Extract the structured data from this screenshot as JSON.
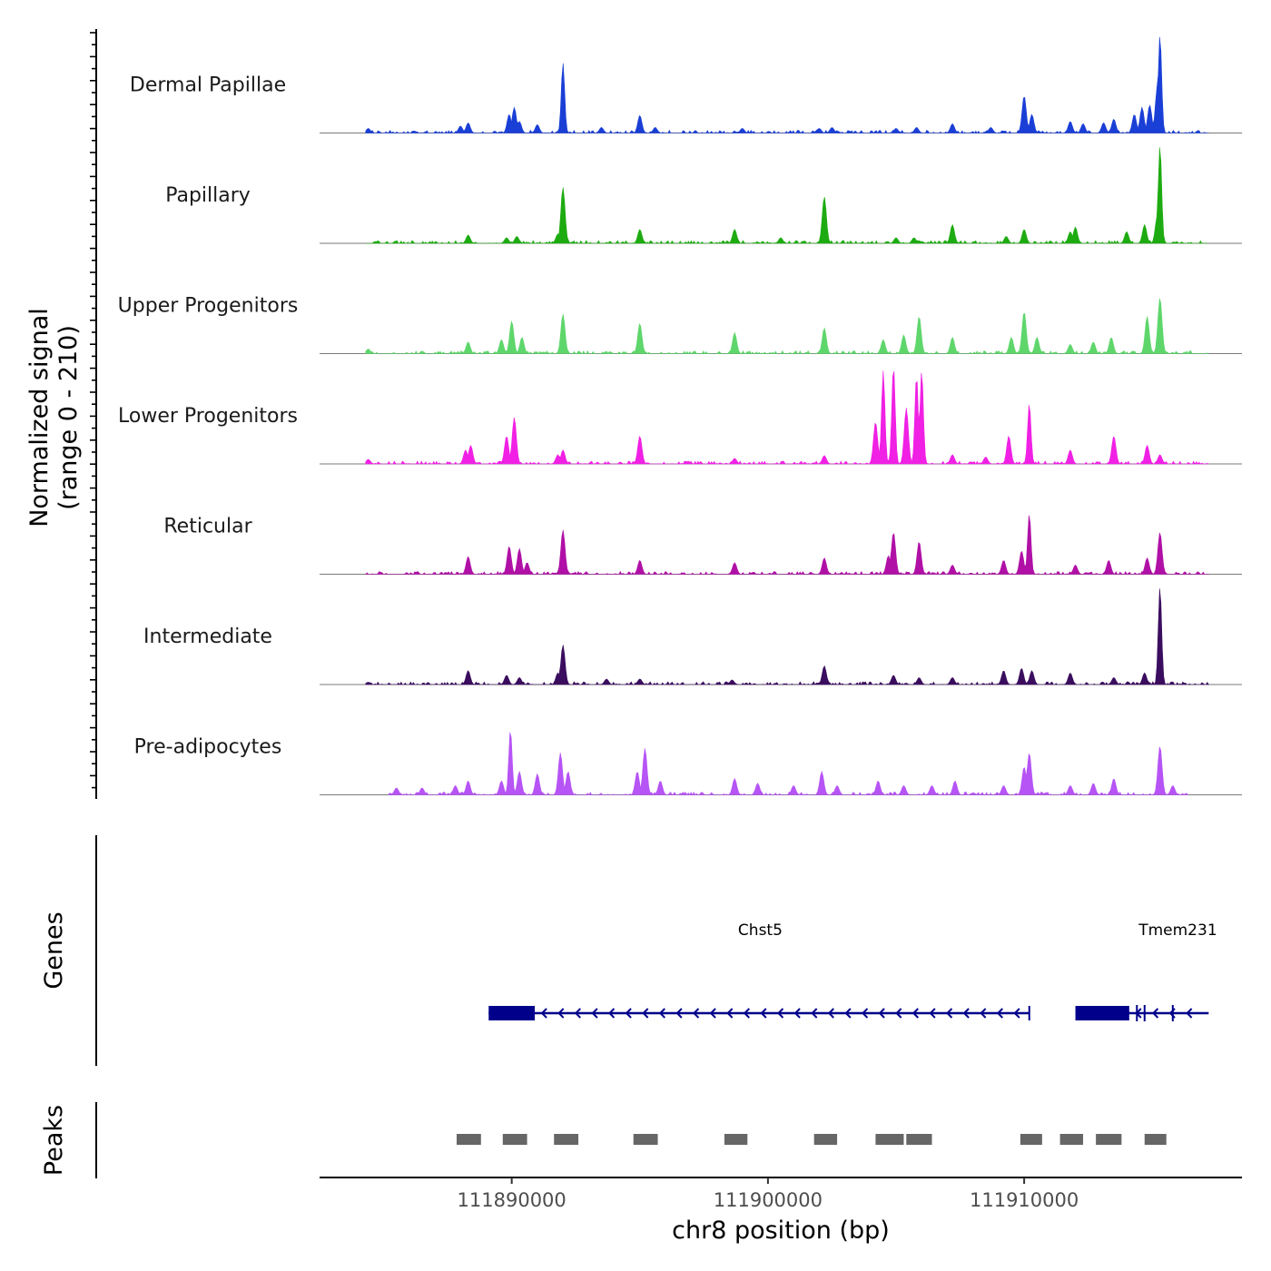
{
  "chart_data": {
    "type": "area",
    "title": "",
    "chromosome": "chr8",
    "xlabel": "chr8 position (bp)",
    "ylabel_line1": "Normalized signal",
    "ylabel_line2": "(range 0 - 210)",
    "y_range": [
      0,
      210
    ],
    "x_range": [
      111882500,
      111918500
    ],
    "x_ticks": [
      {
        "value": 111890000,
        "label": "111890000"
      },
      {
        "value": 111900000,
        "label": "111900000"
      },
      {
        "value": 111910000,
        "label": "111910000"
      }
    ],
    "tracks": [
      {
        "name": "Dermal Papillae",
        "color": "#1a3fd6",
        "start": 111884300,
        "end": 111917200,
        "peaks": [
          [
            111884400,
            10
          ],
          [
            111888000,
            15
          ],
          [
            111888300,
            22
          ],
          [
            111889900,
            40
          ],
          [
            111890100,
            55
          ],
          [
            111890300,
            25
          ],
          [
            111891000,
            18
          ],
          [
            111892000,
            150
          ],
          [
            111893500,
            12
          ],
          [
            111895000,
            38
          ],
          [
            111895600,
            12
          ],
          [
            111899000,
            10
          ],
          [
            111902000,
            10
          ],
          [
            111902500,
            12
          ],
          [
            111905000,
            10
          ],
          [
            111905800,
            12
          ],
          [
            111907200,
            20
          ],
          [
            111908700,
            12
          ],
          [
            111910000,
            80
          ],
          [
            111910300,
            40
          ],
          [
            111911800,
            25
          ],
          [
            111912300,
            20
          ],
          [
            111913100,
            22
          ],
          [
            111913500,
            30
          ],
          [
            111914300,
            40
          ],
          [
            111914600,
            55
          ],
          [
            111914900,
            60
          ],
          [
            111915200,
            100
          ],
          [
            111915300,
            210
          ]
        ]
      },
      {
        "name": "Papillary",
        "color": "#1eab12",
        "start": 111884300,
        "end": 111917200,
        "peaks": [
          [
            111888300,
            18
          ],
          [
            111889800,
            12
          ],
          [
            111890200,
            15
          ],
          [
            111891800,
            20
          ],
          [
            111892000,
            120
          ],
          [
            111895000,
            30
          ],
          [
            111898700,
            30
          ],
          [
            111900500,
            12
          ],
          [
            111902200,
            100
          ],
          [
            111905000,
            12
          ],
          [
            111905700,
            12
          ],
          [
            111907200,
            40
          ],
          [
            111909300,
            15
          ],
          [
            111910000,
            30
          ],
          [
            111911800,
            25
          ],
          [
            111912000,
            35
          ],
          [
            111914000,
            25
          ],
          [
            111914700,
            40
          ],
          [
            111915200,
            60
          ],
          [
            111915300,
            210
          ]
        ]
      },
      {
        "name": "Upper Progenitors",
        "color": "#5ed66b",
        "start": 111884300,
        "end": 111917200,
        "peaks": [
          [
            111884400,
            10
          ],
          [
            111888300,
            25
          ],
          [
            111889600,
            30
          ],
          [
            111890000,
            70
          ],
          [
            111890400,
            35
          ],
          [
            111892000,
            85
          ],
          [
            111895000,
            65
          ],
          [
            111898700,
            45
          ],
          [
            111902200,
            55
          ],
          [
            111904500,
            30
          ],
          [
            111905300,
            40
          ],
          [
            111905900,
            80
          ],
          [
            111907200,
            35
          ],
          [
            111909500,
            35
          ],
          [
            111910000,
            90
          ],
          [
            111910500,
            35
          ],
          [
            111911800,
            20
          ],
          [
            111912700,
            25
          ],
          [
            111913400,
            35
          ],
          [
            111914800,
            80
          ],
          [
            111915300,
            120
          ]
        ]
      },
      {
        "name": "Lower Progenitors",
        "color": "#f020e4",
        "start": 111884300,
        "end": 111917200,
        "peaks": [
          [
            111884400,
            10
          ],
          [
            111888200,
            30
          ],
          [
            111888400,
            40
          ],
          [
            111889800,
            60
          ],
          [
            111890100,
            100
          ],
          [
            111891800,
            20
          ],
          [
            111892000,
            30
          ],
          [
            111895000,
            60
          ],
          [
            111898700,
            12
          ],
          [
            111902200,
            18
          ],
          [
            111904200,
            90
          ],
          [
            111904500,
            200
          ],
          [
            111904900,
            210
          ],
          [
            111905400,
            120
          ],
          [
            111905800,
            190
          ],
          [
            111906000,
            200
          ],
          [
            111907200,
            20
          ],
          [
            111908500,
            15
          ],
          [
            111909400,
            60
          ],
          [
            111910200,
            130
          ],
          [
            111911800,
            30
          ],
          [
            111913500,
            60
          ],
          [
            111914800,
            40
          ],
          [
            111915300,
            20
          ]
        ]
      },
      {
        "name": "Reticular",
        "color": "#b010a6",
        "start": 111884300,
        "end": 111917200,
        "peaks": [
          [
            111888300,
            38
          ],
          [
            111889900,
            60
          ],
          [
            111890300,
            55
          ],
          [
            111890600,
            25
          ],
          [
            111892000,
            95
          ],
          [
            111895000,
            30
          ],
          [
            111898700,
            25
          ],
          [
            111902200,
            35
          ],
          [
            111904700,
            40
          ],
          [
            111904900,
            90
          ],
          [
            111905900,
            70
          ],
          [
            111907200,
            20
          ],
          [
            111909200,
            30
          ],
          [
            111909900,
            50
          ],
          [
            111910200,
            130
          ],
          [
            111912000,
            20
          ],
          [
            111913300,
            30
          ],
          [
            111914800,
            35
          ],
          [
            111915300,
            90
          ]
        ]
      },
      {
        "name": "Intermediate",
        "color": "#3a0d5e",
        "start": 111884300,
        "end": 111917200,
        "peaks": [
          [
            111884400,
            5
          ],
          [
            111888300,
            30
          ],
          [
            111889800,
            20
          ],
          [
            111890300,
            15
          ],
          [
            111891800,
            25
          ],
          [
            111892000,
            85
          ],
          [
            111893700,
            12
          ],
          [
            111895000,
            12
          ],
          [
            111898600,
            10
          ],
          [
            111902200,
            40
          ],
          [
            111904900,
            20
          ],
          [
            111905900,
            15
          ],
          [
            111907200,
            15
          ],
          [
            111909200,
            30
          ],
          [
            111909900,
            35
          ],
          [
            111910300,
            30
          ],
          [
            111911800,
            25
          ],
          [
            111913500,
            15
          ],
          [
            111914700,
            25
          ],
          [
            111915300,
            210
          ]
        ]
      },
      {
        "name": "Pre-adipocytes",
        "color": "#b654f5",
        "start": 111885200,
        "end": 111916400,
        "peaks": [
          [
            111885500,
            15
          ],
          [
            111886500,
            15
          ],
          [
            111887800,
            20
          ],
          [
            111888300,
            30
          ],
          [
            111889600,
            30
          ],
          [
            111889950,
            140
          ],
          [
            111890300,
            50
          ],
          [
            111891000,
            45
          ],
          [
            111891900,
            90
          ],
          [
            111892200,
            50
          ],
          [
            111894900,
            50
          ],
          [
            111895200,
            100
          ],
          [
            111895800,
            30
          ],
          [
            111898700,
            35
          ],
          [
            111899600,
            25
          ],
          [
            111901000,
            20
          ],
          [
            111902100,
            50
          ],
          [
            111902700,
            20
          ],
          [
            111904300,
            30
          ],
          [
            111905300,
            20
          ],
          [
            111906400,
            20
          ],
          [
            111907300,
            30
          ],
          [
            111909200,
            20
          ],
          [
            111910000,
            60
          ],
          [
            111910200,
            90
          ],
          [
            111911800,
            20
          ],
          [
            111912700,
            25
          ],
          [
            111913500,
            35
          ],
          [
            111915300,
            105
          ],
          [
            111915800,
            20
          ]
        ]
      }
    ],
    "genes": [
      {
        "name": "Chst5",
        "start": 111889100,
        "end": 111910200,
        "strand": "-",
        "exons": [
          [
            111889100,
            111890900
          ]
        ]
      },
      {
        "name": "Tmem231",
        "start": 111912000,
        "end": 111917200,
        "strand": "-",
        "exons": [
          [
            111912000,
            111914100
          ]
        ],
        "marks": [
          111914400,
          111914700,
          111915800
        ]
      }
    ],
    "peaks_track": [
      [
        111887850,
        111888800
      ],
      [
        111889650,
        111890600
      ],
      [
        111891650,
        111892600
      ],
      [
        111894750,
        111895700
      ],
      [
        111898300,
        111899200
      ],
      [
        111901800,
        111902700
      ],
      [
        111904200,
        111905300
      ],
      [
        111905400,
        111906400
      ],
      [
        111909850,
        111910700
      ],
      [
        111911400,
        111912300
      ],
      [
        111912800,
        111913800
      ],
      [
        111914700,
        111915550
      ]
    ],
    "panel_labels": {
      "genes": "Genes",
      "peaks": "Peaks"
    }
  }
}
